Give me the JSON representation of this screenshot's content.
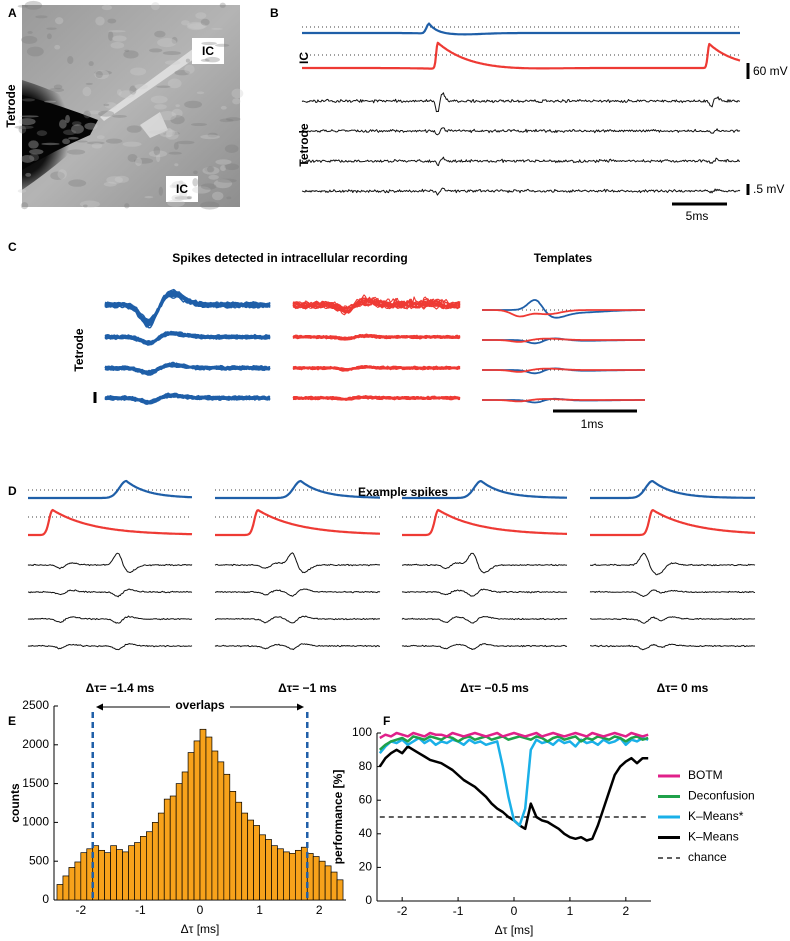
{
  "panel_labels": [
    "A",
    "B",
    "C",
    "D",
    "E",
    "F"
  ],
  "panel_a": {
    "ic_top": "IC",
    "ic_bottom": "IC",
    "tetrode": "Tetrode"
  },
  "panel_b": {
    "ic": "IC",
    "tetrode": "Tetrode",
    "scale_ic": "60 mV",
    "scale_tetrode": ".5 mV",
    "scale_time": "5ms"
  },
  "panel_c": {
    "title": "Spikes detected in intracellular recording",
    "templates": "Templates",
    "tetrode": "Tetrode",
    "scale_time": "1ms"
  },
  "panel_d": {
    "title": "Example spikes",
    "delays": [
      "Δτ= −1.4 ms",
      "Δτ= −1 ms",
      "Δτ= −0.5 ms",
      "Δτ= 0 ms"
    ]
  },
  "chart_data": [
    {
      "type": "histogram",
      "xlabel": "Δτ [ms]",
      "ylabel": "counts",
      "annotation": "overlaps",
      "color": "#f7a21b",
      "overlap_color": "#1f5fa8",
      "overlap_bounds": [
        -1.8,
        1.8
      ],
      "bins": [
        -2.4,
        -2.3,
        -2.2,
        -2.1,
        -2,
        -1.9,
        -1.8,
        -1.7,
        -1.6,
        -1.5,
        -1.4,
        -1.3,
        -1.2,
        -1.1,
        -1,
        -0.9,
        -0.8,
        -0.7,
        -0.6,
        -0.5,
        -0.4,
        -0.3,
        -0.2,
        -0.1,
        0,
        0.1,
        0.2,
        0.3,
        0.4,
        0.5,
        0.6,
        0.7,
        0.8,
        0.9,
        1,
        1.1,
        1.2,
        1.3,
        1.4,
        1.5,
        1.6,
        1.7,
        1.8,
        1.9,
        2,
        2.1,
        2.2,
        2.3,
        2.4
      ],
      "values": [
        200,
        310,
        420,
        490,
        610,
        660,
        700,
        640,
        610,
        700,
        650,
        620,
        700,
        740,
        820,
        880,
        1000,
        1120,
        1300,
        1340,
        1500,
        1650,
        1900,
        2050,
        2200,
        2100,
        1920,
        1780,
        1620,
        1400,
        1260,
        1120,
        1030,
        960,
        840,
        780,
        700,
        660,
        620,
        600,
        640,
        680,
        600,
        560,
        500,
        440,
        360,
        260
      ],
      "xlim": [
        -2.45,
        2.45
      ],
      "ylim": [
        0,
        2500
      ],
      "xticks": [
        -2,
        -1,
        0,
        1,
        2
      ],
      "yticks": [
        0,
        500,
        1000,
        1500,
        2000,
        2500
      ]
    },
    {
      "type": "line",
      "xlabel": "Δτ [ms]",
      "ylabel": "performance [%]",
      "legend": "right",
      "x": [
        -2.4,
        -2.3,
        -2.2,
        -2.1,
        -2,
        -1.9,
        -1.8,
        -1.7,
        -1.6,
        -1.5,
        -1.4,
        -1.3,
        -1.2,
        -1.1,
        -1,
        -0.9,
        -0.8,
        -0.7,
        -0.6,
        -0.5,
        -0.4,
        -0.3,
        -0.2,
        -0.1,
        0,
        0.1,
        0.2,
        0.3,
        0.4,
        0.5,
        0.6,
        0.7,
        0.8,
        0.9,
        1,
        1.1,
        1.2,
        1.3,
        1.4,
        1.5,
        1.6,
        1.7,
        1.8,
        1.9,
        2,
        2.1,
        2.2,
        2.3,
        2.4
      ],
      "series": [
        {
          "name": "BOTM",
          "color": "#e0208a",
          "dashed": false,
          "values": [
            97,
            99,
            98,
            100,
            99,
            98,
            100,
            99,
            98,
            100,
            99,
            99,
            98,
            100,
            99,
            98,
            99,
            100,
            99,
            98,
            99,
            100,
            98,
            99,
            100,
            99,
            98,
            99,
            100,
            98,
            99,
            100,
            99,
            98,
            99,
            100,
            99,
            98,
            100,
            99,
            98,
            99,
            100,
            99,
            98,
            100,
            99,
            98,
            99
          ]
        },
        {
          "name": "Deconfusion",
          "color": "#1fa14a",
          "dashed": false,
          "values": [
            90,
            93,
            95,
            96,
            97,
            95,
            98,
            97,
            96,
            98,
            97,
            96,
            98,
            97,
            95,
            97,
            98,
            96,
            97,
            98,
            96,
            97,
            98,
            96,
            97,
            98,
            97,
            96,
            98,
            97,
            95,
            97,
            98,
            96,
            97,
            98,
            95,
            97,
            96,
            98,
            97,
            96,
            98,
            97,
            95,
            97,
            98,
            96,
            97
          ]
        },
        {
          "name": "K–Means*",
          "color": "#1ab0e8",
          "dashed": false,
          "values": [
            88,
            92,
            95,
            94,
            96,
            93,
            95,
            97,
            94,
            96,
            93,
            95,
            94,
            96,
            95,
            93,
            96,
            94,
            95,
            93,
            94,
            95,
            80,
            62,
            48,
            45,
            55,
            90,
            96,
            94,
            95,
            93,
            96,
            94,
            95,
            92,
            96,
            94,
            95,
            93,
            96,
            94,
            95,
            97,
            93,
            96,
            95,
            97,
            96
          ]
        },
        {
          "name": "K–Means",
          "color": "#000000",
          "dashed": false,
          "values": [
            80,
            85,
            88,
            90,
            88,
            92,
            90,
            88,
            86,
            84,
            83,
            82,
            80,
            78,
            75,
            72,
            70,
            68,
            65,
            62,
            58,
            55,
            53,
            50,
            48,
            45,
            43,
            58,
            50,
            48,
            47,
            45,
            43,
            40,
            38,
            37,
            38,
            36,
            37,
            45,
            55,
            65,
            75,
            80,
            83,
            85,
            82,
            85,
            85
          ]
        },
        {
          "name": "chance",
          "color": "#000000",
          "dashed": true,
          "values": [
            50,
            50,
            50,
            50,
            50,
            50,
            50,
            50,
            50,
            50,
            50,
            50,
            50,
            50,
            50,
            50,
            50,
            50,
            50,
            50,
            50,
            50,
            50,
            50,
            50,
            50,
            50,
            50,
            50,
            50,
            50,
            50,
            50,
            50,
            50,
            50,
            50,
            50,
            50,
            50,
            50,
            50,
            50,
            50,
            50,
            50,
            50,
            50,
            50
          ]
        }
      ],
      "xlim": [
        -2.45,
        2.45
      ],
      "ylim": [
        0,
        100
      ],
      "xticks": [
        -2,
        -1,
        0,
        1,
        2
      ],
      "yticks": [
        0,
        20,
        40,
        60,
        80,
        100
      ]
    }
  ]
}
